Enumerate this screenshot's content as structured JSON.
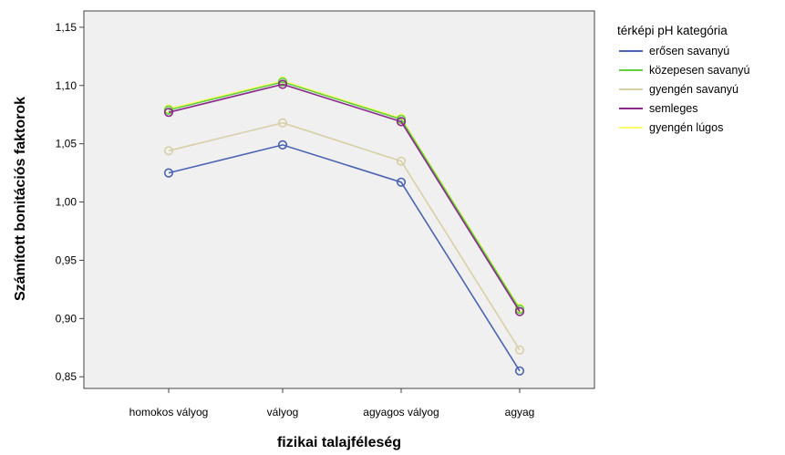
{
  "chart_data": {
    "type": "line",
    "xlabel": "fizikai talajféleség",
    "ylabel": "Számított bonitációs faktorok",
    "categories": [
      "homokos vályog",
      "vályog",
      "agyagos vályog",
      "agyag"
    ],
    "ylim": [
      0.84,
      1.164
    ],
    "yticks": [
      0.85,
      0.9,
      0.95,
      1.0,
      1.05,
      1.1,
      1.15
    ],
    "ytick_labels": [
      "0,85",
      "0,90",
      "0,95",
      "1,00",
      "1,05",
      "1,10",
      "1,15"
    ],
    "grid": false,
    "plot_background": "#f0f0f0",
    "legend": {
      "title": "térképi pH kategória",
      "placement": "right"
    },
    "markers": "open-circle",
    "series": [
      {
        "name": "gyengén lúgos",
        "color": "#ffff66",
        "values": [
          1.08,
          1.104,
          1.072,
          0.909
        ]
      },
      {
        "name": "közepesen savanyú",
        "color": "#5fcf40",
        "values": [
          1.079,
          1.103,
          1.071,
          0.908
        ]
      },
      {
        "name": "semleges",
        "color": "#8b2a8b",
        "values": [
          1.077,
          1.101,
          1.069,
          0.906
        ]
      },
      {
        "name": "gyengén savanyú",
        "color": "#d8cfa6",
        "values": [
          1.044,
          1.068,
          1.035,
          0.873
        ]
      },
      {
        "name": "erősen savanyú",
        "color": "#4a63b4",
        "values": [
          1.025,
          1.049,
          1.017,
          0.855
        ]
      }
    ],
    "legend_order": [
      "erősen savanyú",
      "közepesen savanyú",
      "gyengén savanyú",
      "semleges",
      "gyengén lúgos"
    ]
  }
}
